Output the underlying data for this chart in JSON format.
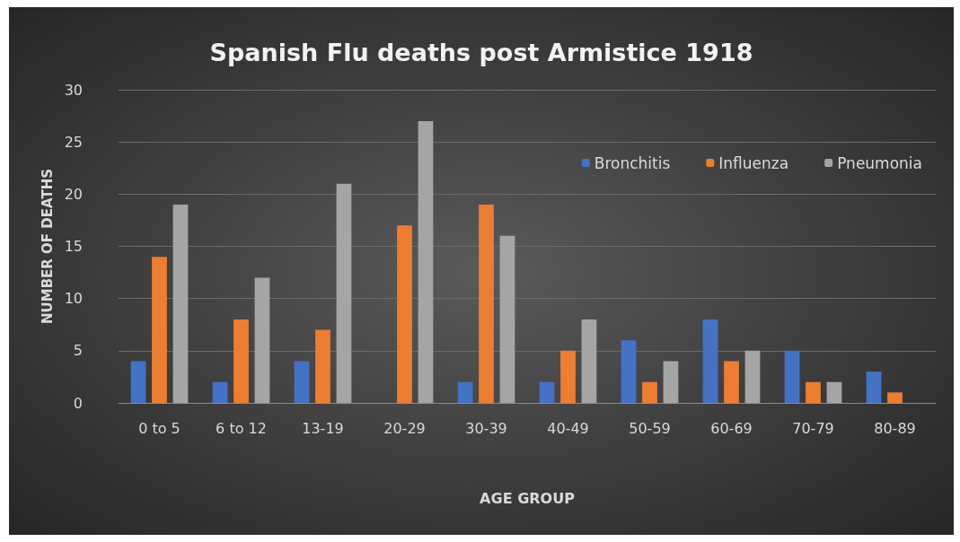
{
  "chart_data": {
    "type": "bar",
    "title": "Spanish Flu deaths post Armistice 1918",
    "xlabel": "AGE GROUP",
    "ylabel": "NUMBER OF DEATHS",
    "categories": [
      "0 to 5",
      "6 to 12",
      "13-19",
      "20-29",
      "30-39",
      "40-49",
      "50-59",
      "60-69",
      "70-79",
      "80-89"
    ],
    "series": [
      {
        "name": "Bronchitis",
        "color": "#4472c4",
        "values": [
          4,
          2,
          4,
          0,
          2,
          2,
          6,
          8,
          5,
          3
        ]
      },
      {
        "name": "Influenza",
        "color": "#ed7d31",
        "values": [
          14,
          8,
          7,
          17,
          19,
          5,
          2,
          4,
          2,
          1
        ]
      },
      {
        "name": "Pneumonia",
        "color": "#a5a5a5",
        "values": [
          19,
          12,
          21,
          27,
          16,
          8,
          4,
          5,
          2,
          0
        ]
      }
    ],
    "ylim": [
      0,
      30
    ],
    "yticks": [
      0,
      5,
      10,
      15,
      20,
      25,
      30
    ],
    "grid": "y",
    "legend": "top right"
  }
}
